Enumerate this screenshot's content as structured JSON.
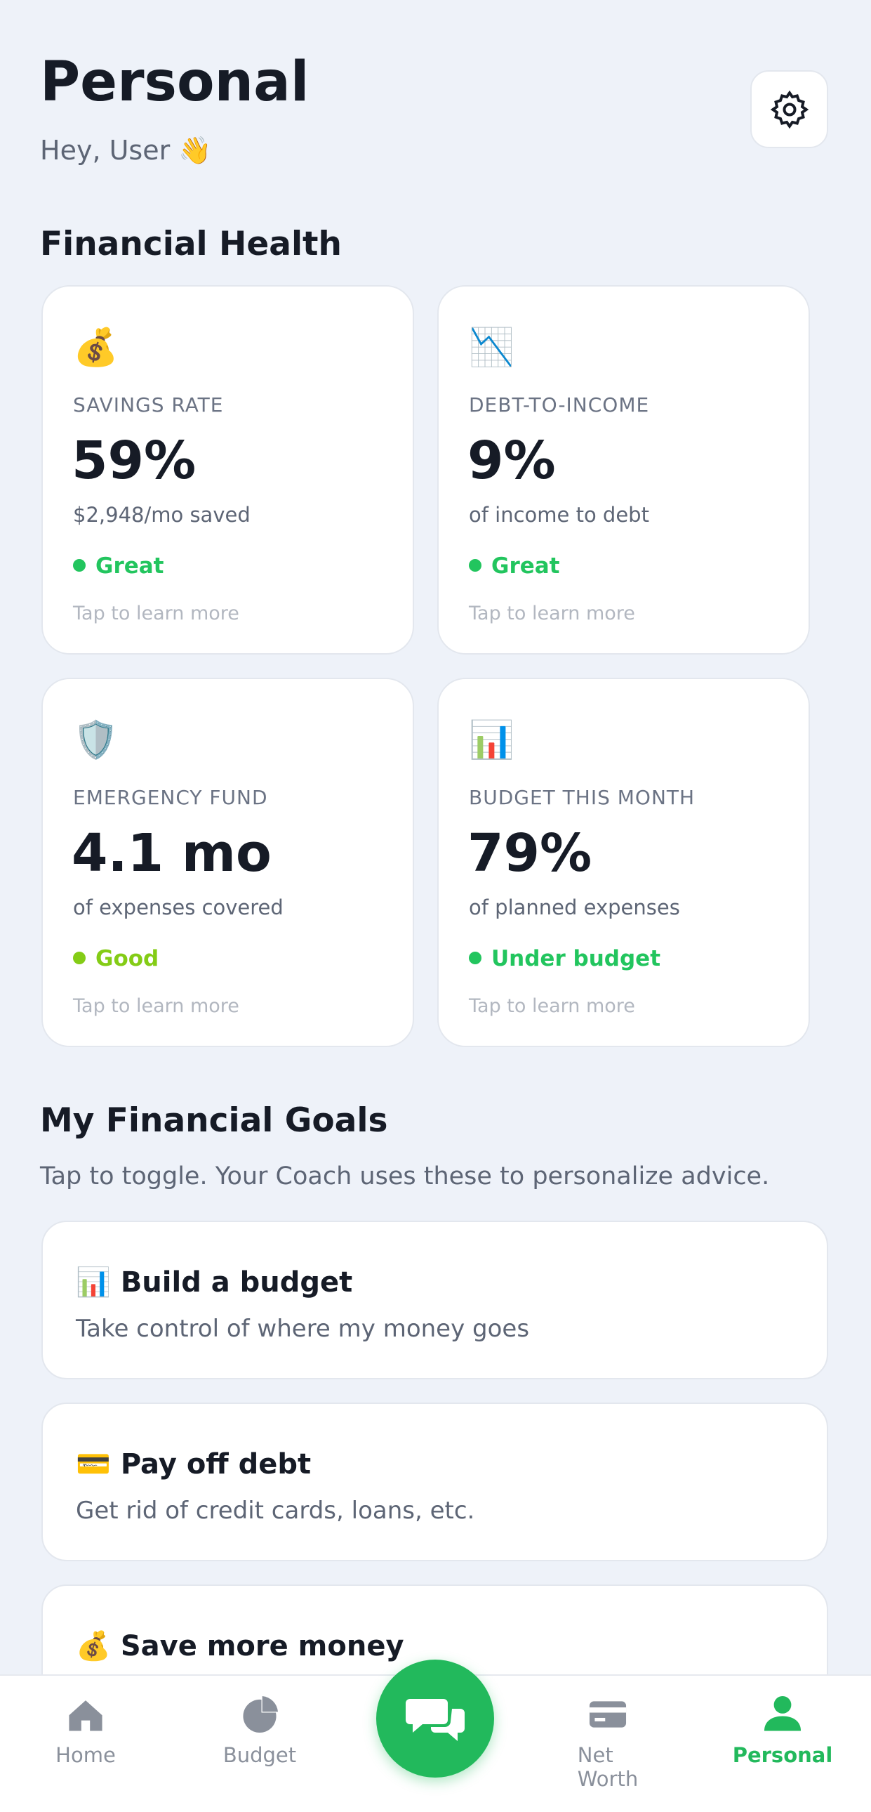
{
  "header": {
    "title": "Personal",
    "greeting": "Hey, User 👋"
  },
  "financial_health": {
    "title": "Financial Health",
    "cards": [
      {
        "icon": "💰",
        "label": "SAVINGS RATE",
        "value": "59%",
        "detail": "$2,948/mo saved",
        "status": "Great",
        "status_color": "#22c55e",
        "hint": "Tap to learn more"
      },
      {
        "icon": "📉",
        "label": "DEBT-TO-INCOME",
        "value": "9%",
        "detail": "of income to debt",
        "status": "Great",
        "status_color": "#22c55e",
        "hint": "Tap to learn more"
      },
      {
        "icon": "🛡️",
        "label": "EMERGENCY FUND",
        "value": "4.1 mo",
        "detail": "of expenses covered",
        "status": "Good",
        "status_color": "#84cc16",
        "hint": "Tap to learn more"
      },
      {
        "icon": "📊",
        "label": "BUDGET THIS MONTH",
        "value": "79%",
        "detail": "of planned expenses",
        "status": "Under budget",
        "status_color": "#22c55e",
        "hint": "Tap to learn more"
      }
    ]
  },
  "goals": {
    "title": "My Financial Goals",
    "subtitle": "Tap to toggle. Your Coach uses these to personalize advice.",
    "items": [
      {
        "icon": "📊",
        "title": "Build a budget",
        "description": "Take control of where my money goes"
      },
      {
        "icon": "💳",
        "title": "Pay off debt",
        "description": "Get rid of credit cards, loans, etc."
      },
      {
        "icon": "💰",
        "title": "Save more money"
      }
    ]
  },
  "nav": {
    "items": [
      "Home",
      "Budget",
      "Net Worth",
      "Personal"
    ]
  }
}
